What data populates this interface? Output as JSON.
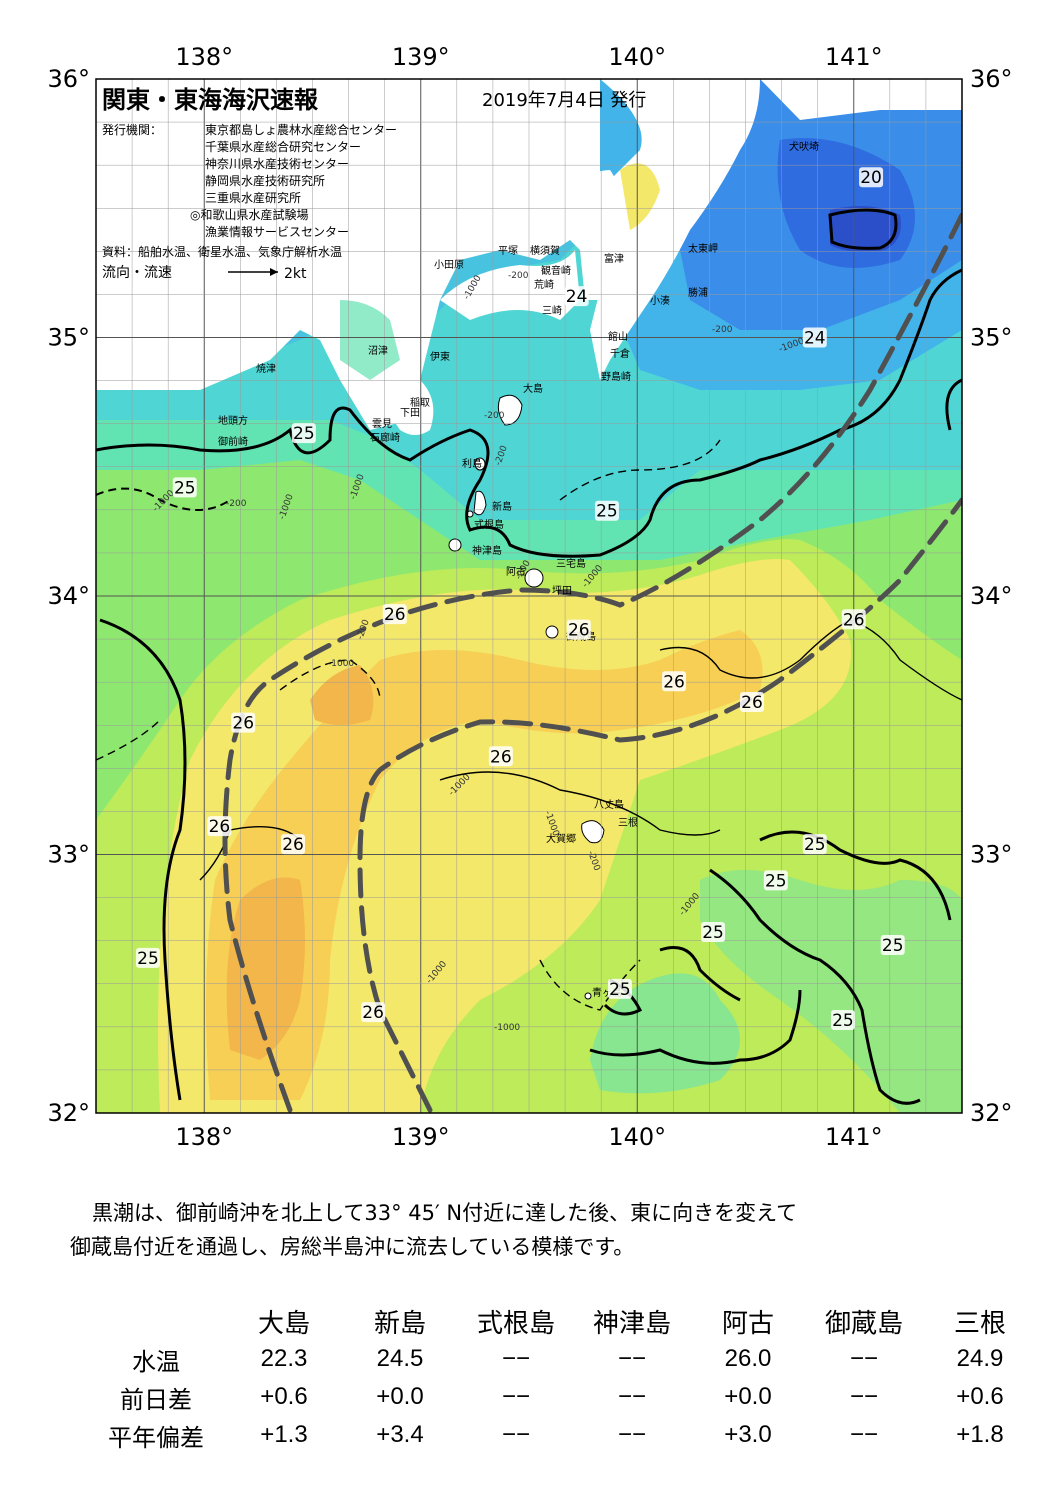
{
  "header": {
    "title": "関東・東海海沢速報",
    "date": "2019年7月4日 発行",
    "issuer_label": "発行機関：",
    "issuers": [
      "東京都島しょ農林水産総合センター",
      "千葉県水産総合研究センター",
      "神奈川県水産技術センター",
      "静岡県水産技術研究所",
      "三重県水産研究所",
      "◎和歌山県水産試験場",
      "漁業情報サービスセンター"
    ],
    "source": "資料：船舶水温、衛星水温、気象庁解析水温",
    "legend_label": "流向・流速",
    "legend_speed": "2kt"
  },
  "map": {
    "lon_labels": [
      "138°",
      "139°",
      "140°",
      "141°"
    ],
    "lat_labels": [
      "36°",
      "35°",
      "34°",
      "33°",
      "32°"
    ],
    "colors": {
      "t20": "#2a4fc9",
      "t21": "#2f6ce0",
      "t22": "#3a8ee9",
      "t23": "#42b4ea",
      "t24": "#4fd6d4",
      "t245": "#62e3b2",
      "t25": "#8ee870",
      "t255": "#bdeb5a",
      "t26": "#f3e86a",
      "t265": "#f7cf55",
      "t27": "#f2b64a",
      "land": "#ffffff",
      "kuroshio": "#505050",
      "contour": "#000000"
    },
    "places": [
      "犬吠埼",
      "太東岬",
      "勝浦",
      "小湊",
      "富津",
      "平塚",
      "横須賀",
      "観音崎",
      "荒崎",
      "三崎",
      "館山",
      "千倉",
      "野島崎",
      "小田原",
      "沼津",
      "伊東",
      "焼津",
      "稲取",
      "下田",
      "雲見",
      "石廊崎",
      "地頭方",
      "御前崎",
      "大島",
      "利島",
      "新島",
      "式根島",
      "神津島",
      "阿古",
      "三宅島",
      "坪田",
      "御蔵島",
      "八丈島",
      "三根",
      "大賀郷",
      "青ヶ島"
    ],
    "isotherm_labels": [
      {
        "value": "20",
        "lon": 141.08,
        "lat": 35.62
      },
      {
        "value": "24",
        "lon": 139.72,
        "lat": 35.16
      },
      {
        "value": "24",
        "lon": 140.82,
        "lat": 35.0
      },
      {
        "value": "25",
        "lon": 138.46,
        "lat": 34.63
      },
      {
        "value": "25",
        "lon": 137.91,
        "lat": 34.42
      },
      {
        "value": "25",
        "lon": 139.86,
        "lat": 34.33
      },
      {
        "value": "26",
        "lon": 138.88,
        "lat": 33.93
      },
      {
        "value": "26",
        "lon": 139.73,
        "lat": 33.87
      },
      {
        "value": "26",
        "lon": 141.0,
        "lat": 33.91
      },
      {
        "value": "26",
        "lon": 140.17,
        "lat": 33.67
      },
      {
        "value": "26",
        "lon": 140.53,
        "lat": 33.59
      },
      {
        "value": "26",
        "lon": 138.18,
        "lat": 33.51
      },
      {
        "value": "26",
        "lon": 139.37,
        "lat": 33.38
      },
      {
        "value": "26",
        "lon": 138.07,
        "lat": 33.11
      },
      {
        "value": "26",
        "lon": 138.41,
        "lat": 33.04
      },
      {
        "value": "25",
        "lon": 140.82,
        "lat": 33.04
      },
      {
        "value": "25",
        "lon": 140.64,
        "lat": 32.9
      },
      {
        "value": "25",
        "lon": 140.35,
        "lat": 32.7
      },
      {
        "value": "25",
        "lon": 141.18,
        "lat": 32.65
      },
      {
        "value": "25",
        "lon": 137.74,
        "lat": 32.6
      },
      {
        "value": "25",
        "lon": 139.92,
        "lat": 32.48
      },
      {
        "value": "26",
        "lon": 138.78,
        "lat": 32.39
      },
      {
        "value": "25",
        "lon": 140.95,
        "lat": 32.36
      }
    ],
    "depth_labels": [
      "-200",
      "-1000"
    ]
  },
  "description": {
    "line1": "黒潮は、御前崎沖を北上して33° 45′ N付近に達した後、東に向きを変えて",
    "line2": "御蔵島付近を通過し、房総半島沖に流去している模様です。"
  },
  "table": {
    "columns": [
      "大島",
      "新島",
      "式根島",
      "神津島",
      "阿古",
      "御蔵島",
      "三根"
    ],
    "rows": [
      {
        "label": "水温",
        "values": [
          "22.3",
          "24.5",
          "−−",
          "−−",
          "26.0",
          "−−",
          "24.9"
        ]
      },
      {
        "label": "前日差",
        "values": [
          "+0.6",
          "+0.0",
          "−−",
          "−−",
          "+0.0",
          "−−",
          "+0.6"
        ]
      },
      {
        "label": "平年偏差",
        "values": [
          "+1.3",
          "+3.4",
          "−−",
          "−−",
          "+3.0",
          "−−",
          "+1.8"
        ]
      }
    ]
  }
}
